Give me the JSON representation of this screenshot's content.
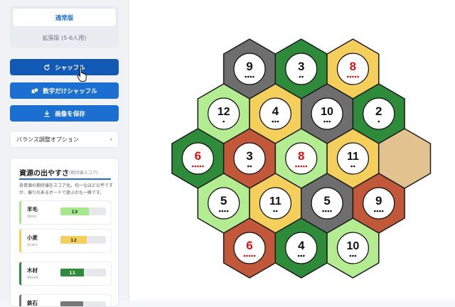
{
  "sidebar": {
    "mode_standard": "通常版",
    "mode_extended": "拡張版 (5-6人用)",
    "shuffle_label": "シャッフル",
    "number_shuffle_label": "数字だけシャッフル",
    "save_label": "画像を保存",
    "balance_option_label": "バランス調整オプション",
    "resource_panel": {
      "title": "資源の出やすさ",
      "subtitle": "(期待値スコア)",
      "description": "各資源の期待値をスコア化。均一なほど公平ですが、偏りのあるボードで遊ぶのも一興です。",
      "items": [
        {
          "name": "羊毛",
          "en": "Wool",
          "score": "13",
          "fill": 0.62,
          "color": "#a6e98a"
        },
        {
          "name": "小麦",
          "en": "Grain",
          "score": "12",
          "fill": 0.58,
          "color": "#f5cf5c"
        },
        {
          "name": "木材",
          "en": "Wood",
          "score": "11",
          "fill": 0.52,
          "color": "#2e8b3a"
        },
        {
          "name": "鉄石",
          "en": "",
          "score": "",
          "fill": 0.5,
          "color": "#777777"
        }
      ]
    }
  },
  "board": {
    "colors": {
      "ore": "#6e6e6e",
      "wood": "#2e8b3a",
      "grain": "#f5cf5c",
      "wool": "#b4ec92",
      "brick": "#c1583a",
      "desert": "#e2c28f"
    },
    "rows": [
      [
        {
          "t": "ore",
          "n": "9",
          "d": 4,
          "red": false
        },
        {
          "t": "wood",
          "n": "3",
          "d": 2,
          "red": false
        },
        {
          "t": "grain",
          "n": "8",
          "d": 5,
          "red": true
        }
      ],
      [
        {
          "t": "wool",
          "n": "12",
          "d": 1,
          "red": false
        },
        {
          "t": "grain",
          "n": "4",
          "d": 3,
          "red": false
        },
        {
          "t": "ore",
          "n": "10",
          "d": 3,
          "red": false
        },
        {
          "t": "wood",
          "n": "2",
          "d": 1,
          "red": false
        }
      ],
      [
        {
          "t": "wood",
          "n": "6",
          "d": 5,
          "red": true
        },
        {
          "t": "brick",
          "n": "3",
          "d": 2,
          "red": false
        },
        {
          "t": "wool",
          "n": "8",
          "d": 5,
          "red": true
        },
        {
          "t": "grain",
          "n": "11",
          "d": 2,
          "red": false
        },
        {
          "t": "desert",
          "n": "",
          "d": 0,
          "red": false
        }
      ],
      [
        {
          "t": "wool",
          "n": "5",
          "d": 4,
          "red": false
        },
        {
          "t": "grain",
          "n": "11",
          "d": 2,
          "red": false
        },
        {
          "t": "ore",
          "n": "5",
          "d": 4,
          "red": false
        },
        {
          "t": "brick",
          "n": "9",
          "d": 4,
          "red": false
        }
      ],
      [
        {
          "t": "brick",
          "n": "6",
          "d": 5,
          "red": true
        },
        {
          "t": "wood",
          "n": "4",
          "d": 3,
          "red": false
        },
        {
          "t": "wool",
          "n": "10",
          "d": 3,
          "red": false
        }
      ]
    ]
  }
}
